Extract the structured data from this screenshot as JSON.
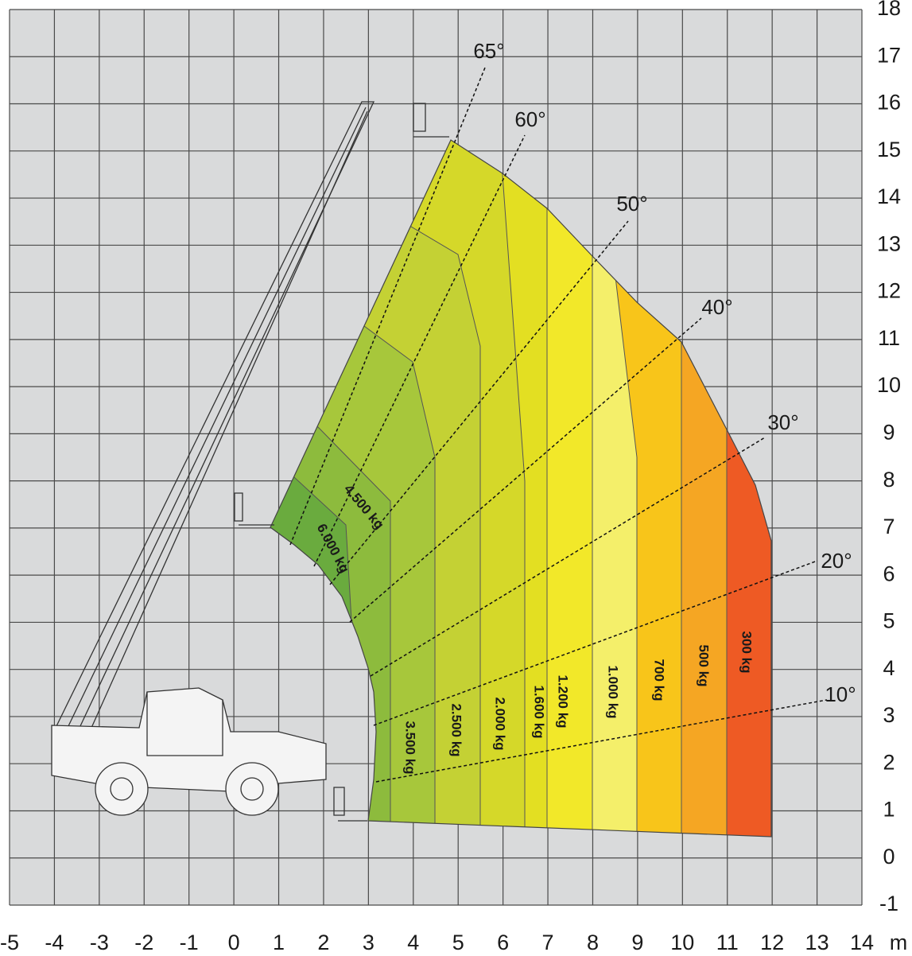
{
  "axes": {
    "xticks": [
      -5,
      -4,
      -3,
      -2,
      -1,
      0,
      1,
      2,
      3,
      4,
      5,
      6,
      7,
      8,
      9,
      10,
      11,
      12,
      13,
      14
    ],
    "yticks": [
      -1,
      0,
      1,
      2,
      3,
      4,
      5,
      6,
      7,
      8,
      9,
      10,
      11,
      12,
      13,
      14,
      15,
      16,
      17,
      18
    ],
    "unit": "m"
  },
  "angles": [
    "65°",
    "60°",
    "50°",
    "40°",
    "30°",
    "20°",
    "10°"
  ],
  "loads": [
    "6.000 kg",
    "4.500 kg",
    "3.500 kg",
    "2.500 kg",
    "2.000 kg",
    "1.600 kg",
    "1.200 kg",
    "1.000 kg",
    "700 kg",
    "500 kg",
    "300 kg"
  ]
}
